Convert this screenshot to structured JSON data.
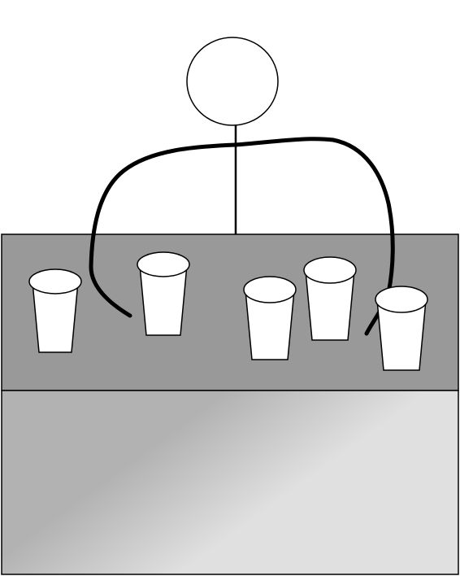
{
  "scene": {
    "colors": {
      "background": "#ffffff",
      "table_top": "#999999",
      "table_front_dark": "#b2b2b2",
      "table_front_light": "#e0e0e0",
      "outline": "#000000",
      "cup_fill": "#ffffff"
    },
    "figure": {
      "parts": [
        "head",
        "body-line",
        "left-arm",
        "right-arm"
      ]
    },
    "cups": {
      "count": 5
    }
  }
}
